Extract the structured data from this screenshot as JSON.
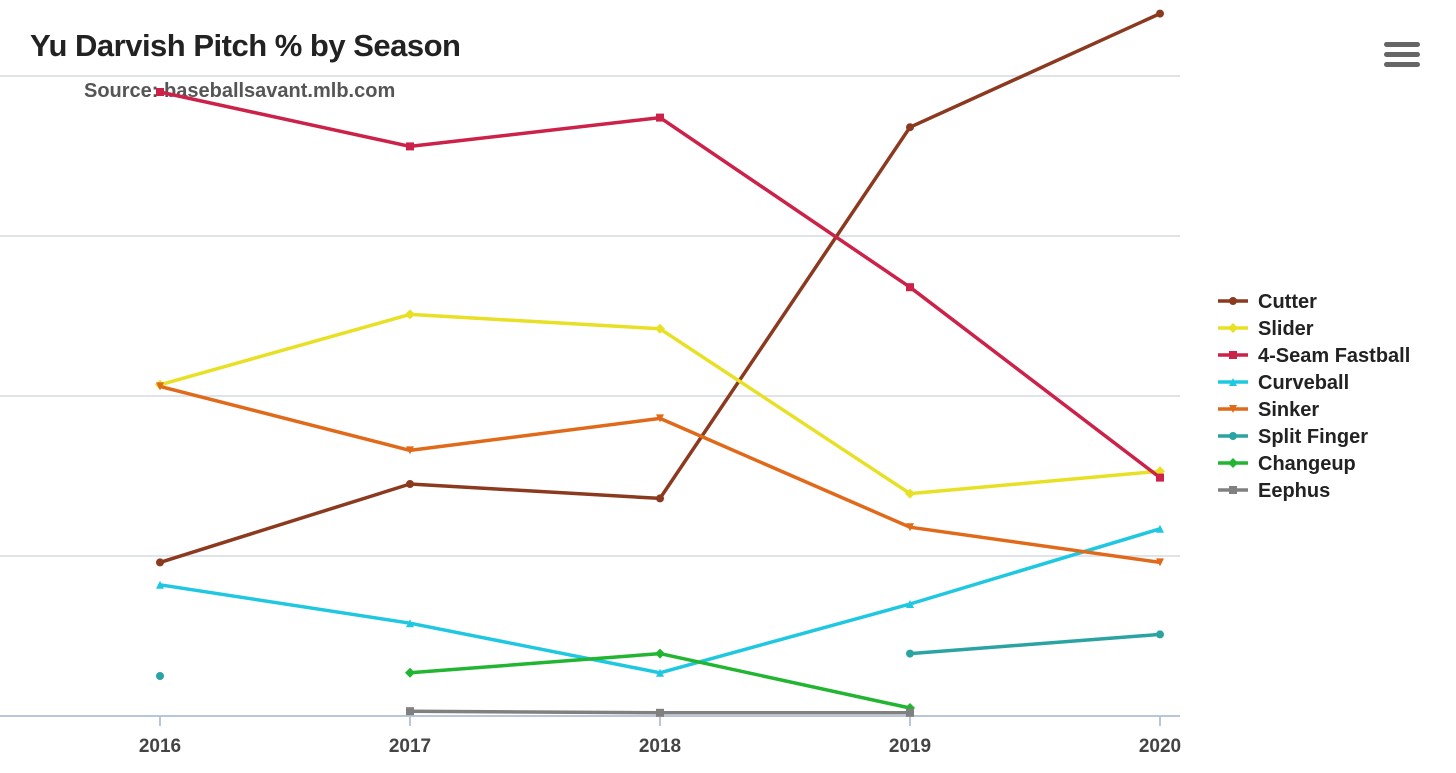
{
  "header": {
    "title": "Yu Darvish Pitch % by Season",
    "subtitle": "Source: baseballsavant.mlb.com",
    "menu_icon": "hamburger-menu-icon"
  },
  "chart_data": {
    "type": "line",
    "title": "Yu Darvish Pitch % by Season",
    "subtitle": "Source: baseballsavant.mlb.com",
    "xlabel": "",
    "ylabel": "",
    "categories": [
      "2016",
      "2017",
      "2018",
      "2019",
      "2020"
    ],
    "ylim": [
      0,
      40
    ],
    "yticks": [
      0,
      10,
      20,
      30,
      40
    ],
    "grid": true,
    "legend_position": "right",
    "series": [
      {
        "name": "Cutter",
        "color": "#8b3a1f",
        "marker": "circle",
        "values": [
          9.6,
          14.5,
          13.6,
          36.8,
          43.9
        ]
      },
      {
        "name": "Slider",
        "color": "#e8e024",
        "marker": "diamond",
        "values": [
          20.7,
          25.1,
          24.2,
          13.9,
          15.3
        ]
      },
      {
        "name": "4-Seam Fastball",
        "color": "#cc2149",
        "marker": "square",
        "values": [
          39.0,
          35.6,
          37.4,
          26.8,
          14.9
        ]
      },
      {
        "name": "Curveball",
        "color": "#1fc8e0",
        "marker": "triangle",
        "values": [
          8.2,
          5.8,
          2.7,
          7.0,
          11.7
        ]
      },
      {
        "name": "Sinker",
        "color": "#e0691a",
        "marker": "triangle-down",
        "values": [
          20.6,
          16.6,
          18.6,
          11.8,
          9.6
        ]
      },
      {
        "name": "Split Finger",
        "color": "#2ba3a3",
        "marker": "circle",
        "values": [
          2.5,
          null,
          null,
          3.9,
          5.1
        ]
      },
      {
        "name": "Changeup",
        "color": "#22b531",
        "marker": "diamond",
        "values": [
          null,
          2.7,
          3.9,
          0.5,
          null
        ]
      },
      {
        "name": "Eephus",
        "color": "#808080",
        "marker": "square",
        "values": [
          null,
          0.3,
          0.2,
          0.2,
          null
        ]
      }
    ]
  }
}
